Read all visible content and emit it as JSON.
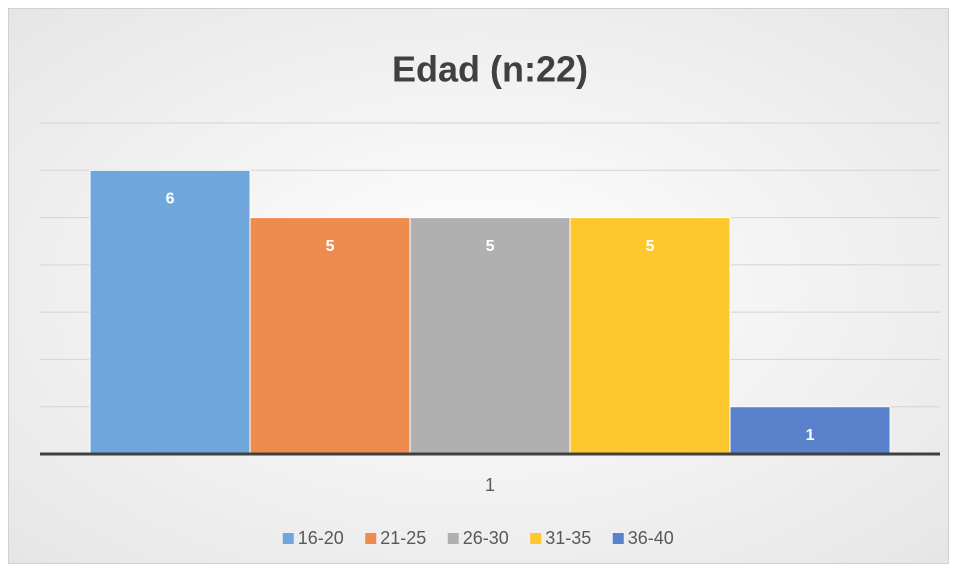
{
  "chart_data": {
    "type": "bar",
    "title": "Edad (n:22)",
    "categories": [
      "1"
    ],
    "series": [
      {
        "name": "16-20",
        "color": "#6fa6db",
        "values": [
          6
        ]
      },
      {
        "name": "21-25",
        "color": "#ee8c4f",
        "values": [
          5
        ]
      },
      {
        "name": "26-30",
        "color": "#b0b0b0",
        "values": [
          5
        ]
      },
      {
        "name": "31-35",
        "color": "#fec72d",
        "values": [
          5
        ]
      },
      {
        "name": "36-40",
        "color": "#5a82cc",
        "values": [
          1
        ]
      }
    ],
    "ylim": [
      0,
      7
    ],
    "yticks": [
      0,
      1,
      2,
      3,
      4,
      5,
      6,
      7
    ],
    "grid": true
  }
}
